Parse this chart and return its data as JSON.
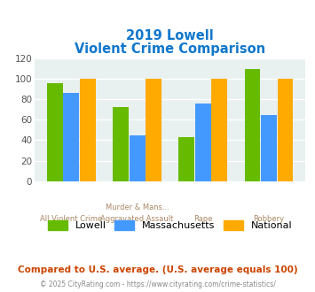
{
  "title_line1": "2019 Lowell",
  "title_line2": "Violent Crime Comparison",
  "cat_labels_top": [
    "",
    "Murder & Mans...",
    "",
    ""
  ],
  "cat_labels_bot": [
    "All Violent Crime",
    "Aggravated Assault",
    "Rape",
    "Robbery"
  ],
  "lowell": [
    96,
    72,
    43,
    110
  ],
  "massachusetts": [
    86,
    45,
    76,
    65
  ],
  "national": [
    100,
    100,
    100,
    100
  ],
  "lowell_color": "#66bb00",
  "mass_color": "#4499ff",
  "national_color": "#ffaa00",
  "ylim": [
    0,
    120
  ],
  "yticks": [
    0,
    20,
    40,
    60,
    80,
    100,
    120
  ],
  "bg_color": "#e8f0f0",
  "title_color": "#1177cc",
  "label_color": "#aa8866",
  "footer_note": "Compared to U.S. average. (U.S. average equals 100)",
  "footer_copy": "© 2025 CityRating.com - https://www.cityrating.com/crime-statistics/",
  "footer_note_color": "#cc4400",
  "footer_copy_color": "#888888"
}
